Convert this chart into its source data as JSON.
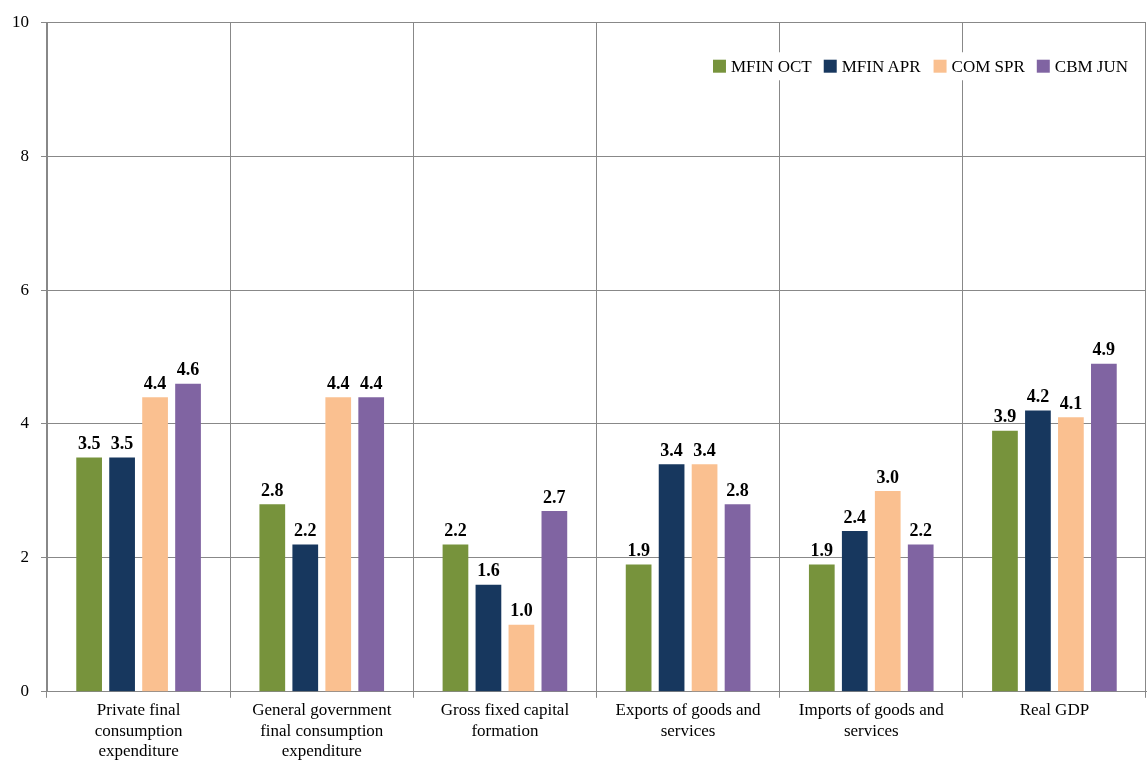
{
  "chart_data": {
    "type": "bar",
    "categories": [
      "Private final consumption expenditure",
      "General government final consumption expenditure",
      "Gross fixed capital formation",
      "Exports of goods and services",
      "Imports of goods and services",
      "Real GDP"
    ],
    "series": [
      {
        "name": "MFIN OCT",
        "color": "#77933c",
        "values": [
          3.5,
          2.8,
          2.2,
          1.9,
          1.9,
          3.9
        ],
        "value_labels": [
          "3.5",
          "2.8",
          "2.2",
          "1.9",
          "1.9",
          "3.9"
        ]
      },
      {
        "name": "MFIN APR",
        "color": "#17375e",
        "values": [
          3.5,
          2.2,
          1.6,
          3.4,
          2.4,
          4.2
        ],
        "value_labels": [
          "3.5",
          "2.2",
          "1.6",
          "3.4",
          "2.4",
          "4.2"
        ]
      },
      {
        "name": "COM SPR",
        "color": "#fac090",
        "values": [
          4.4,
          4.4,
          1.0,
          3.4,
          3.0,
          4.1
        ],
        "value_labels": [
          "4.4",
          "4.4",
          "1.0",
          "3.4",
          "3.0",
          "4.1"
        ]
      },
      {
        "name": "CBM JUN",
        "color": "#8064a2",
        "values": [
          4.6,
          4.4,
          2.7,
          2.8,
          2.2,
          4.9
        ],
        "value_labels": [
          "4.6",
          "4.4",
          "2.7",
          "2.8",
          "2.2",
          "4.9"
        ]
      }
    ],
    "ylim": [
      0,
      10
    ],
    "yticks": [
      0,
      2,
      4,
      6,
      8,
      10
    ],
    "grid": true,
    "legend": "top right"
  }
}
